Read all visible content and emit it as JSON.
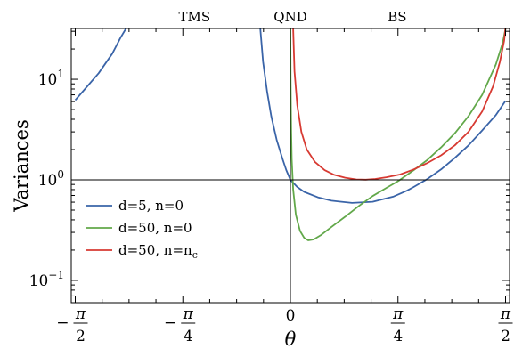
{
  "chart_data": {
    "type": "line",
    "title": "",
    "xlabel": "θ",
    "ylabel": "Variances",
    "xlim": [
      -1.6,
      1.6
    ],
    "ylim": [
      0.06,
      32
    ],
    "y_scale": "log",
    "grid": false,
    "legend_position": "lower-left",
    "x_ticks": [
      {
        "value": -1.5708,
        "sign": "−",
        "num": "π",
        "den": "2"
      },
      {
        "value": -0.7854,
        "sign": "−",
        "num": "π",
        "den": "4"
      },
      {
        "value": 0,
        "sign": "",
        "num": "0",
        "den": ""
      },
      {
        "value": 0.7854,
        "sign": "",
        "num": "π",
        "den": "4"
      },
      {
        "value": 1.5708,
        "sign": "",
        "num": "π",
        "den": "2"
      }
    ],
    "y_ticks": [
      {
        "value": 0.1,
        "base": "10",
        "exp": "−1"
      },
      {
        "value": 1,
        "base": "10",
        "exp": "0"
      },
      {
        "value": 10,
        "base": "10",
        "exp": "1"
      }
    ],
    "regions": [
      {
        "label": "TMS",
        "x": -0.7
      },
      {
        "label": "QND",
        "x": 0
      },
      {
        "label": "BS",
        "x": 0.78
      }
    ],
    "reference_lines": [
      {
        "orientation": "horizontal",
        "value": 1
      },
      {
        "orientation": "vertical",
        "value": 0
      }
    ],
    "series": [
      {
        "legend_base": "d=5, n=0",
        "color": "#3a64a8",
        "segments": [
          [
            [
              -1.5708,
              6.2
            ],
            [
              -1.5,
              8.0
            ],
            [
              -1.4,
              11.5
            ],
            [
              -1.3,
              18.0
            ],
            [
              -1.24,
              26
            ],
            [
              -1.2,
              32
            ]
          ],
          [
            [
              -0.22,
              32
            ],
            [
              -0.2,
              15.0
            ],
            [
              -0.17,
              7.5
            ],
            [
              -0.14,
              4.3
            ],
            [
              -0.1,
              2.5
            ],
            [
              -0.06,
              1.65
            ],
            [
              -0.03,
              1.25
            ],
            [
              0,
              1.0
            ],
            [
              0.05,
              0.85
            ],
            [
              0.1,
              0.76
            ],
            [
              0.2,
              0.67
            ],
            [
              0.3,
              0.62
            ],
            [
              0.45,
              0.59
            ],
            [
              0.6,
              0.605
            ],
            [
              0.75,
              0.68
            ],
            [
              0.85,
              0.78
            ],
            [
              0.9,
              0.85
            ],
            [
              1.0,
              1.02
            ],
            [
              1.1,
              1.27
            ],
            [
              1.2,
              1.65
            ],
            [
              1.3,
              2.2
            ],
            [
              1.4,
              3.1
            ],
            [
              1.5,
              4.4
            ],
            [
              1.5708,
              6.1
            ]
          ]
        ]
      },
      {
        "legend_base": "d=50, n=0",
        "color": "#62a84a",
        "segments": [
          [
            [
              0,
              32
            ],
            [
              0.002,
              10
            ],
            [
              0.004,
              5
            ],
            [
              0.006,
              3
            ],
            [
              0.01,
              1.6
            ],
            [
              0.02,
              0.8
            ],
            [
              0.04,
              0.45
            ],
            [
              0.07,
              0.31
            ],
            [
              0.1,
              0.265
            ],
            [
              0.13,
              0.25
            ],
            [
              0.17,
              0.255
            ],
            [
              0.22,
              0.28
            ],
            [
              0.3,
              0.34
            ],
            [
              0.4,
              0.43
            ],
            [
              0.5,
              0.55
            ],
            [
              0.6,
              0.69
            ],
            [
              0.7,
              0.83
            ],
            [
              0.78,
              0.96
            ],
            [
              0.8,
              1.0
            ],
            [
              0.9,
              1.25
            ],
            [
              1.0,
              1.58
            ],
            [
              1.1,
              2.1
            ],
            [
              1.2,
              2.9
            ],
            [
              1.3,
              4.3
            ],
            [
              1.4,
              7.0
            ],
            [
              1.5,
              14
            ],
            [
              1.55,
              23
            ],
            [
              1.5708,
              32
            ]
          ]
        ]
      },
      {
        "legend_base": "d=50, n=n",
        "legend_sub": "c",
        "color": "#d73a32",
        "segments": [
          [
            [
              0.02,
              32
            ],
            [
              0.03,
              12
            ],
            [
              0.05,
              5.5
            ],
            [
              0.08,
              3.0
            ],
            [
              0.12,
              2.0
            ],
            [
              0.18,
              1.5
            ],
            [
              0.25,
              1.25
            ],
            [
              0.32,
              1.12
            ],
            [
              0.4,
              1.05
            ],
            [
              0.48,
              1.01
            ],
            [
              0.55,
              1.005
            ],
            [
              0.62,
              1.02
            ],
            [
              0.7,
              1.06
            ],
            [
              0.8,
              1.13
            ],
            [
              0.9,
              1.27
            ],
            [
              1.0,
              1.47
            ],
            [
              1.1,
              1.75
            ],
            [
              1.2,
              2.2
            ],
            [
              1.3,
              3.0
            ],
            [
              1.4,
              4.8
            ],
            [
              1.48,
              8.5
            ],
            [
              1.53,
              15
            ],
            [
              1.56,
              24
            ],
            [
              1.57,
              32
            ]
          ]
        ]
      }
    ]
  }
}
